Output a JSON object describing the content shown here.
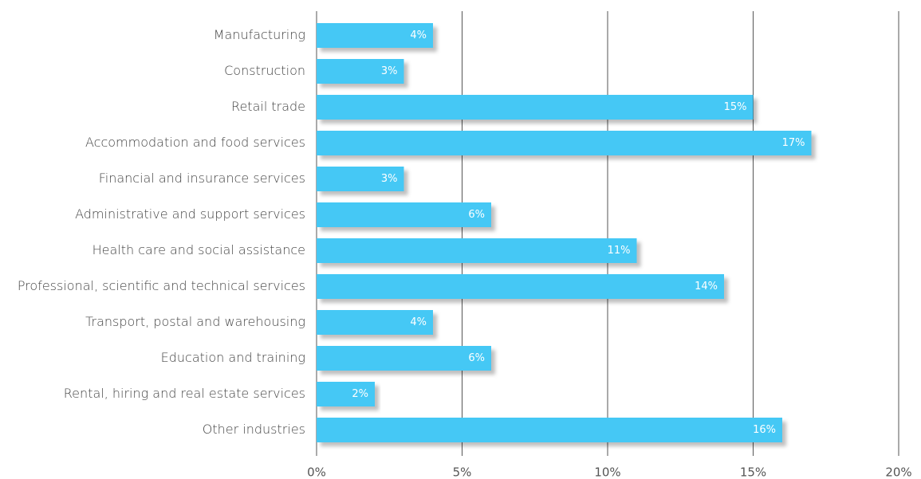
{
  "chart_data": {
    "type": "bar",
    "orientation": "horizontal",
    "categories": [
      "Manufacturing",
      "Construction",
      "Retail trade",
      "Accommodation and food services",
      "Financial and insurance services",
      "Administrative and support services",
      "Health care and social assistance",
      "Professional, scientific and technical services",
      "Transport, postal and warehousing",
      "Education and training",
      "Rental, hiring and real estate services",
      "Other industries"
    ],
    "values": [
      4,
      3,
      15,
      17,
      3,
      6,
      11,
      14,
      4,
      6,
      2,
      16
    ],
    "value_labels": [
      "4%",
      "3%",
      "15%",
      "17%",
      "3%",
      "6%",
      "11%",
      "14%",
      "4%",
      "6%",
      "2%",
      "16%"
    ],
    "color": "#45c8f5",
    "xlim": [
      0,
      20
    ],
    "xticks": [
      {
        "value": 0,
        "label": "0%"
      },
      {
        "value": 5,
        "label": "5%"
      },
      {
        "value": 10,
        "label": "10%"
      },
      {
        "value": 15,
        "label": "15%"
      },
      {
        "value": 20,
        "label": "20%"
      }
    ],
    "grid": true
  }
}
